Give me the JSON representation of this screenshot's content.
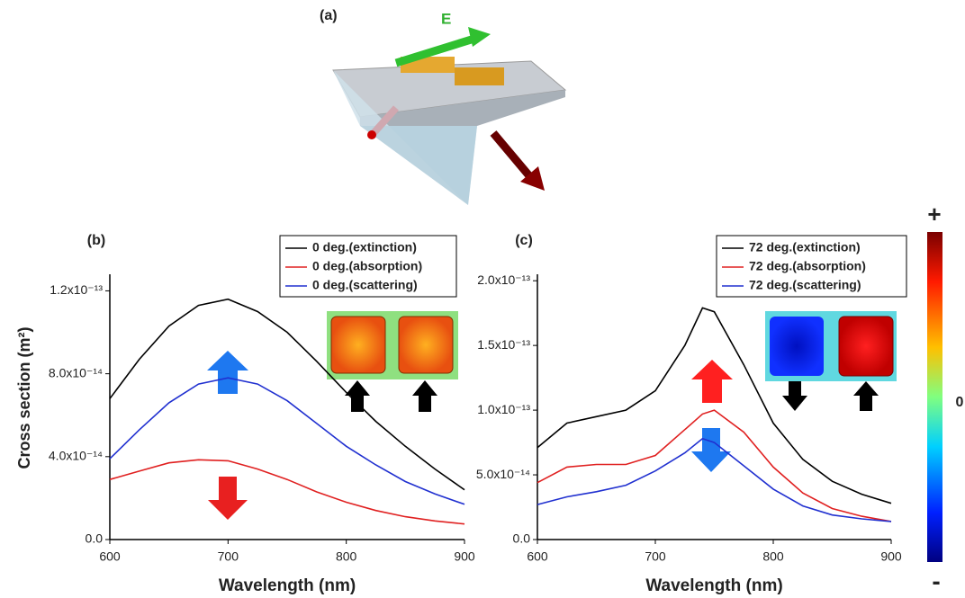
{
  "figure": {
    "panel_label": "(a)",
    "field_label": "E",
    "colorbar_labels": [
      "+",
      "0",
      "-"
    ]
  },
  "chart_data": [
    {
      "type": "line",
      "label": "(b)",
      "xlabel": "Wavelength (nm)",
      "ylabel": "Cross section (m²)",
      "x": [
        600,
        625,
        650,
        675,
        700,
        725,
        750,
        775,
        800,
        825,
        850,
        875,
        900
      ],
      "xlim": [
        600,
        900
      ],
      "xticks": [
        600,
        700,
        800,
        900
      ],
      "ylim": [
        0,
        1.28e-13
      ],
      "yticks": [
        {
          "value": 0,
          "label": "0.0"
        },
        {
          "value": 4e-14,
          "label": "4.0x10⁻¹⁴"
        },
        {
          "value": 8e-14,
          "label": "8.0x10⁻¹⁴"
        },
        {
          "value": 1.2e-13,
          "label": "1.2x10⁻¹³"
        }
      ],
      "legend": "upper right",
      "series": [
        {
          "name": "0 deg.(extinction)",
          "color": "#000000",
          "values": [
            6.8e-14,
            8.7e-14,
            1.03e-13,
            1.13e-13,
            1.16e-13,
            1.1e-13,
            1e-13,
            8.6e-14,
            7.1e-14,
            5.7e-14,
            4.5e-14,
            3.4e-14,
            2.4e-14
          ]
        },
        {
          "name": "0 deg.(absorption)",
          "color": "#e02020",
          "values": [
            2.9e-14,
            3.3e-14,
            3.7e-14,
            3.85e-14,
            3.8e-14,
            3.4e-14,
            2.9e-14,
            2.3e-14,
            1.8e-14,
            1.4e-14,
            1.1e-14,
            9e-15,
            7.5e-15
          ]
        },
        {
          "name": "0 deg.(scattering)",
          "color": "#2030d0",
          "values": [
            3.9e-14,
            5.3e-14,
            6.6e-14,
            7.5e-14,
            7.8e-14,
            7.5e-14,
            6.7e-14,
            5.6e-14,
            4.5e-14,
            3.6e-14,
            2.8e-14,
            2.2e-14,
            1.7e-14
          ]
        }
      ]
    },
    {
      "type": "line",
      "label": "(c)",
      "xlabel": "Wavelength (nm)",
      "x": [
        600,
        625,
        650,
        675,
        700,
        725,
        740,
        750,
        775,
        800,
        825,
        850,
        875,
        900
      ],
      "xlim": [
        600,
        900
      ],
      "xticks": [
        600,
        700,
        800,
        900
      ],
      "ylim": [
        0,
        2.05e-13
      ],
      "yticks": [
        {
          "value": 0,
          "label": "0.0"
        },
        {
          "value": 5e-14,
          "label": "5.0x10⁻¹⁴"
        },
        {
          "value": 1e-13,
          "label": "1.0x10⁻¹³"
        },
        {
          "value": 1.5e-13,
          "label": "1.5x10⁻¹³"
        },
        {
          "value": 2e-13,
          "label": "2.0x10⁻¹³"
        }
      ],
      "legend": "upper right",
      "series": [
        {
          "name": "72 deg.(extinction)",
          "color": "#000000",
          "values": [
            7.1e-14,
            9e-14,
            9.5e-14,
            1e-13,
            1.15e-13,
            1.5e-13,
            1.79e-13,
            1.76e-13,
            1.35e-13,
            9e-14,
            6.2e-14,
            4.5e-14,
            3.5e-14,
            2.8e-14
          ]
        },
        {
          "name": "72 deg.(absorption)",
          "color": "#e02020",
          "values": [
            4.4e-14,
            5.6e-14,
            5.8e-14,
            5.8e-14,
            6.5e-14,
            8.5e-14,
            9.7e-14,
            1e-13,
            8.3e-14,
            5.6e-14,
            3.6e-14,
            2.4e-14,
            1.8e-14,
            1.4e-14
          ]
        },
        {
          "name": "72 deg.(scattering)",
          "color": "#2030d0",
          "values": [
            2.7e-14,
            3.3e-14,
            3.7e-14,
            4.2e-14,
            5.3e-14,
            6.7e-14,
            7.8e-14,
            7.5e-14,
            5.7e-14,
            3.9e-14,
            2.6e-14,
            1.9e-14,
            1.6e-14,
            1.4e-14
          ]
        }
      ]
    }
  ]
}
